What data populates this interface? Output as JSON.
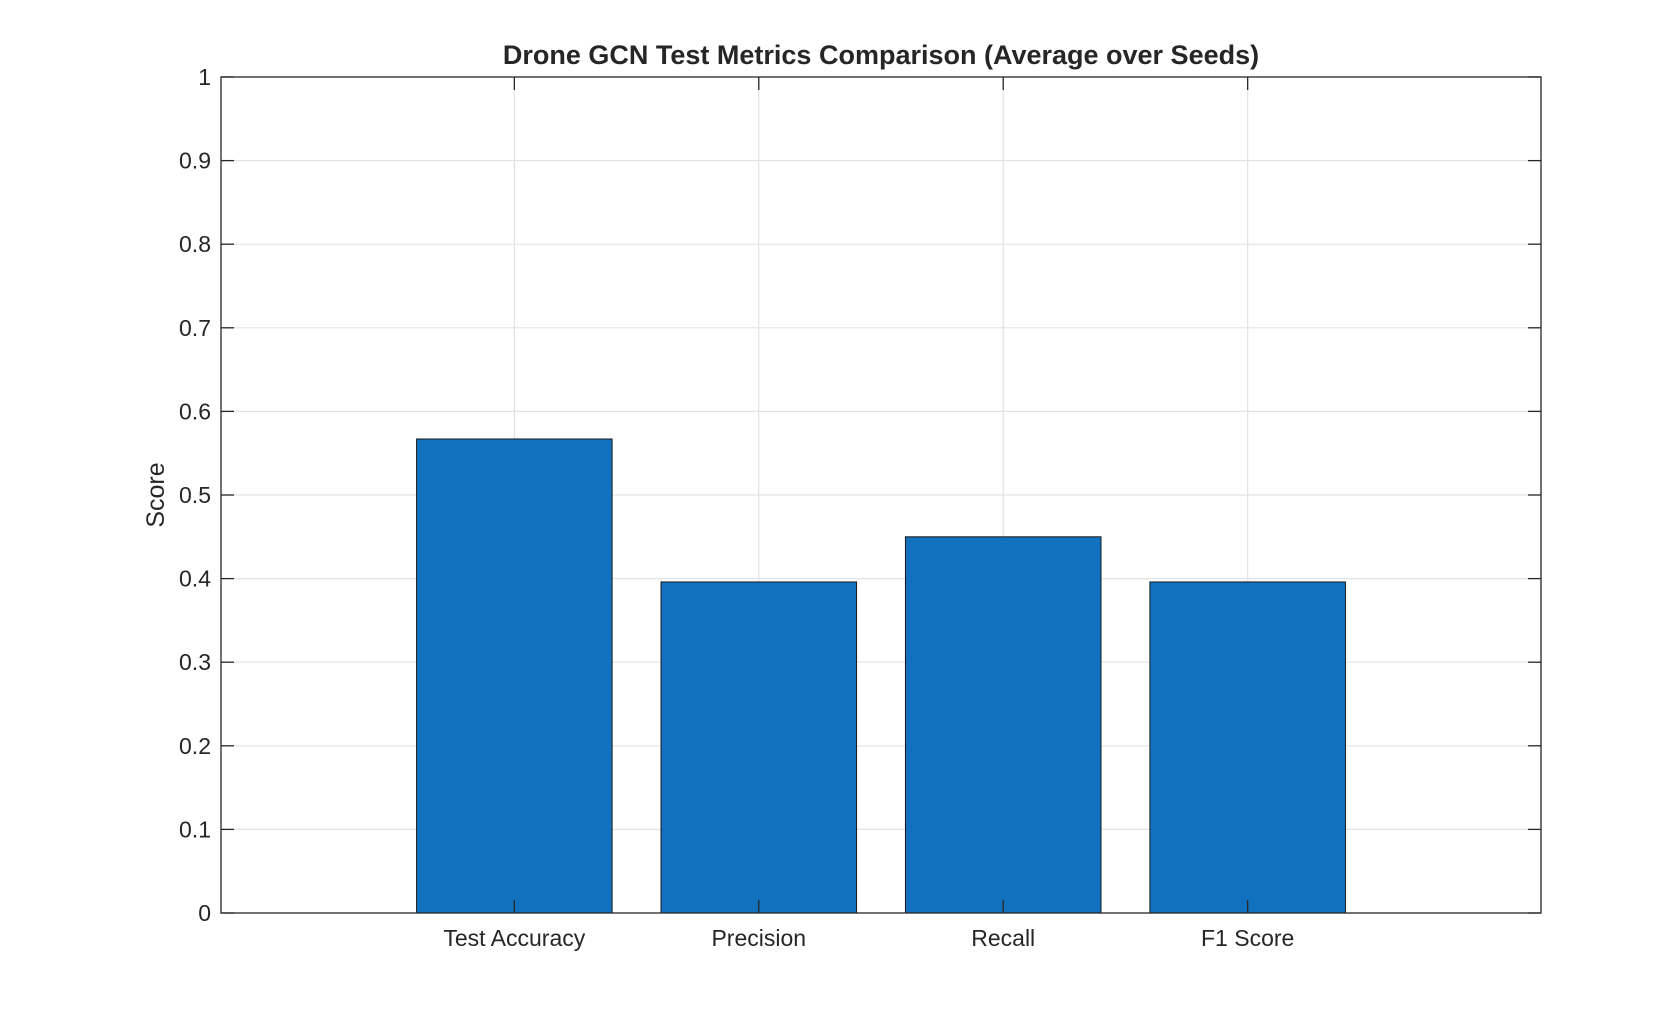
{
  "chart_data": {
    "type": "bar",
    "title": "Drone GCN Test Metrics Comparison (Average over Seeds)",
    "xlabel": "",
    "ylabel": "Score",
    "categories": [
      "Test Accuracy",
      "Precision",
      "Recall",
      "F1 Score"
    ],
    "values": [
      0.567,
      0.396,
      0.45,
      0.396
    ],
    "ylim": [
      0,
      1
    ],
    "xlim": [
      -0.2,
      5.2
    ],
    "yticks": [
      0,
      0.1,
      0.2,
      0.3,
      0.4,
      0.5,
      0.6,
      0.7,
      0.8,
      0.9,
      1
    ],
    "ytick_labels": [
      "0",
      "0.1",
      "0.2",
      "0.3",
      "0.4",
      "0.5",
      "0.6",
      "0.7",
      "0.8",
      "0.9",
      "1"
    ],
    "grid": true,
    "bar_width": 0.8,
    "colors": {
      "bar_fill": "#1271BE",
      "bar_edge": "#1a1a1a",
      "axis": "#262626",
      "grid": "#e3e3e3",
      "text": "#262626"
    }
  }
}
